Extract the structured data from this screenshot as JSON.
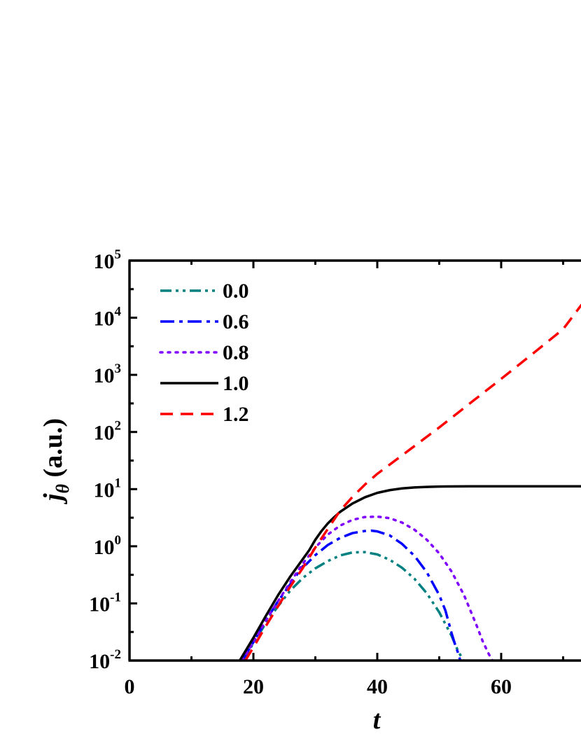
{
  "chart_data": {
    "type": "line",
    "title": "",
    "xlabel": "t",
    "ylabel_main": "j",
    "ylabel_sub": "θ",
    "ylabel_units": "(a.u.)",
    "yscale": "log",
    "xlim": [
      0,
      73
    ],
    "ylim": [
      0.01,
      100000
    ],
    "x_ticks": [
      0,
      20,
      40,
      60
    ],
    "x_tick_labels": [
      "0",
      "20",
      "40",
      "60"
    ],
    "y_ticks": [
      0.01,
      0.1,
      1,
      10,
      100,
      1000,
      10000,
      100000
    ],
    "y_tick_labels": [
      {
        "base": "10",
        "exp": "-2"
      },
      {
        "base": "10",
        "exp": "-1"
      },
      {
        "base": "10",
        "exp": "0"
      },
      {
        "base": "10",
        "exp": "1"
      },
      {
        "base": "10",
        "exp": "2"
      },
      {
        "base": "10",
        "exp": "3"
      },
      {
        "base": "10",
        "exp": "4"
      },
      {
        "base": "10",
        "exp": "5"
      }
    ],
    "grid": false,
    "legend_position": "top-left",
    "series": [
      {
        "name": "0.0",
        "color": "#008080",
        "dash": "dashdotdot",
        "x": [
          18.3,
          20,
          22,
          24,
          26,
          28,
          30,
          32,
          34,
          36,
          38,
          40,
          42,
          44,
          46,
          48,
          50,
          52,
          53,
          53.9
        ],
        "y": [
          0.01,
          0.02,
          0.045,
          0.09,
          0.17,
          0.28,
          0.41,
          0.55,
          0.69,
          0.78,
          0.79,
          0.72,
          0.58,
          0.42,
          0.27,
          0.15,
          0.07,
          0.027,
          0.015,
          0.01
        ]
      },
      {
        "name": "0.6",
        "color": "#0000ff",
        "dash": "dashdot",
        "x": [
          18.2,
          20,
          22,
          24,
          26,
          28,
          28.5,
          30,
          32,
          34,
          36,
          38,
          39,
          40,
          42,
          44,
          46,
          48,
          50,
          51,
          52,
          52.5,
          53,
          53.4
        ],
        "y": [
          0.01,
          0.021,
          0.05,
          0.11,
          0.22,
          0.45,
          0.48,
          0.7,
          1.05,
          1.4,
          1.7,
          1.85,
          1.88,
          1.82,
          1.55,
          1.1,
          0.68,
          0.35,
          0.14,
          0.075,
          0.03,
          0.02,
          0.014,
          0.01
        ]
      },
      {
        "name": "0.8",
        "color": "#8000ff",
        "dash": "dot",
        "x": [
          18.2,
          20,
          22,
          24,
          26,
          28,
          30,
          32,
          34,
          36,
          38,
          40,
          42,
          44,
          46,
          48,
          50,
          52,
          54,
          56,
          57,
          58,
          58.6
        ],
        "y": [
          0.01,
          0.021,
          0.05,
          0.11,
          0.24,
          0.5,
          0.95,
          1.6,
          2.3,
          2.9,
          3.25,
          3.3,
          3.1,
          2.6,
          1.95,
          1.3,
          0.75,
          0.36,
          0.14,
          0.042,
          0.022,
          0.013,
          0.01
        ]
      },
      {
        "name": "1.0",
        "color": "#000000",
        "dash": "solid",
        "x": [
          17.8,
          20,
          22,
          24,
          26,
          28,
          29,
          30,
          31,
          32,
          33,
          34,
          36,
          38,
          40,
          42,
          44,
          46,
          48,
          50,
          55,
          60,
          65,
          70,
          73
        ],
        "y": [
          0.01,
          0.025,
          0.06,
          0.14,
          0.3,
          0.6,
          0.85,
          1.3,
          1.85,
          2.5,
          3.2,
          4.0,
          5.6,
          7.2,
          8.6,
          9.6,
          10.3,
          10.7,
          10.95,
          11.1,
          11.2,
          11.2,
          11.2,
          11.2,
          11.2
        ]
      },
      {
        "name": "1.2",
        "color": "#ff0000",
        "dash": "dash",
        "x": [
          18.7,
          20,
          22,
          24,
          26,
          28,
          30,
          32,
          34,
          36,
          38,
          40,
          45,
          50,
          55,
          60,
          65,
          70,
          73
        ],
        "y": [
          0.01,
          0.017,
          0.04,
          0.09,
          0.2,
          0.42,
          0.95,
          2.0,
          4.2,
          7.3,
          12.0,
          18.5,
          47,
          120,
          320,
          850,
          2300,
          6300,
          17000
        ]
      }
    ]
  }
}
